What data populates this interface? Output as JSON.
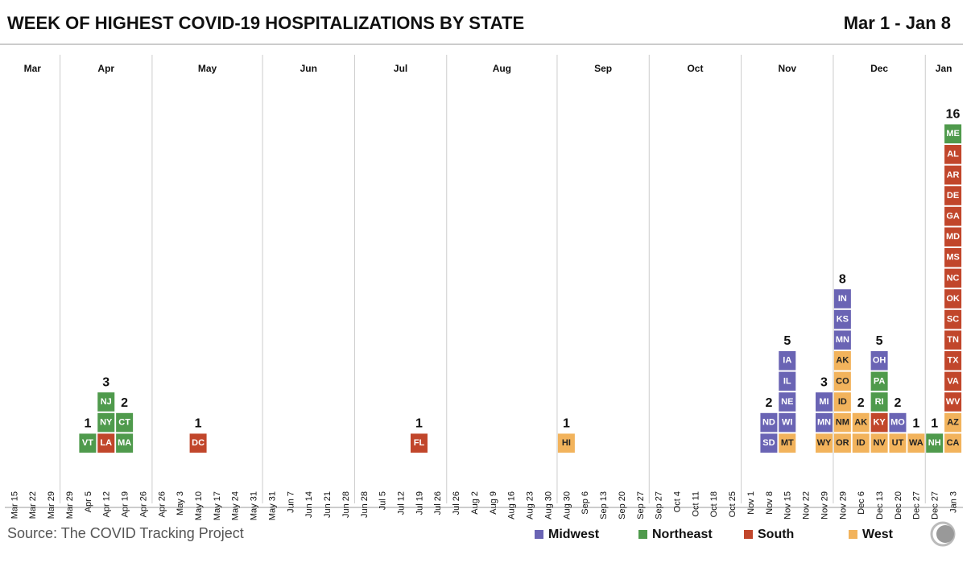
{
  "chart_data": {
    "type": "tile-stack",
    "title": "WEEK OF HIGHEST COVID-19 HOSPITALIZATIONS BY STATE",
    "date_range": "Mar 1 - Jan 8",
    "source": "Source: The COVID Tracking Project",
    "months": [
      "Mar",
      "Apr",
      "May",
      "Jun",
      "Jul",
      "Aug",
      "Sep",
      "Oct",
      "Nov",
      "Dec",
      "Jan"
    ],
    "categories": [
      "Mar 15",
      "Mar 22",
      "Mar 29",
      "Mar 29",
      "Apr 5",
      "Apr 12",
      "Apr 19",
      "Apr 26",
      "Apr 26",
      "May 3",
      "May 10",
      "May 17",
      "May 24",
      "May 31",
      "May 31",
      "Jun 7",
      "Jun 14",
      "Jun 21",
      "Jun 28",
      "Jun 28",
      "Jul 5",
      "Jul 12",
      "Jul 19",
      "Jul 26",
      "Jul 26",
      "Aug 2",
      "Aug 9",
      "Aug 16",
      "Aug 23",
      "Aug 30",
      "Aug 30",
      "Sep 6",
      "Sep 13",
      "Sep 20",
      "Sep 27",
      "Sep 27",
      "Oct 4",
      "Oct 11",
      "Oct 18",
      "Oct 25",
      "Nov 1",
      "Nov 8",
      "Nov 15",
      "Nov 22",
      "Nov 29",
      "Nov 29",
      "Dec 6",
      "Dec 13",
      "Dec 20",
      "Dec 27",
      "Dec 27",
      "Jan 3"
    ],
    "values": [
      null,
      null,
      null,
      null,
      1,
      3,
      2,
      null,
      null,
      null,
      1,
      null,
      null,
      null,
      null,
      null,
      null,
      null,
      null,
      null,
      null,
      null,
      1,
      null,
      null,
      null,
      null,
      null,
      null,
      null,
      1,
      null,
      null,
      null,
      null,
      null,
      null,
      null,
      null,
      null,
      null,
      2,
      5,
      null,
      3,
      8,
      2,
      5,
      2,
      1,
      1,
      16
    ],
    "regions": [
      {
        "name": "Midwest",
        "color": "#6a64b4",
        "text_color": "#ffffff"
      },
      {
        "name": "Northeast",
        "color": "#4f9a4c",
        "text_color": "#ffffff"
      },
      {
        "name": "South",
        "color": "#c1462b",
        "text_color": "#ffffff"
      },
      {
        "name": "West",
        "color": "#f2b35c",
        "text_color": "#222222"
      }
    ],
    "tiles": [
      [],
      [],
      [],
      [],
      [
        [
          "VT",
          1
        ]
      ],
      [
        [
          "LA",
          2
        ],
        [
          "NY",
          1
        ],
        [
          "NJ",
          1
        ]
      ],
      [
        [
          "MA",
          1
        ],
        [
          "CT",
          1
        ]
      ],
      [],
      [],
      [],
      [
        [
          "DC",
          2
        ]
      ],
      [],
      [],
      [],
      [],
      [],
      [],
      [],
      [],
      [],
      [],
      [],
      [
        [
          "FL",
          2
        ]
      ],
      [],
      [],
      [],
      [],
      [],
      [],
      [],
      [
        [
          "HI",
          3
        ]
      ],
      [],
      [],
      [],
      [],
      [],
      [],
      [],
      [],
      [],
      [],
      [
        [
          "SD",
          0
        ],
        [
          "ND",
          0
        ]
      ],
      [
        [
          "MT",
          3
        ],
        [
          "WI",
          0
        ],
        [
          "NE",
          0
        ],
        [
          "IL",
          0
        ],
        [
          "IA",
          0
        ]
      ],
      [],
      [
        [
          "WY",
          3
        ],
        [
          "MN",
          0
        ],
        [
          "MI",
          0
        ]
      ],
      [
        [
          "OR",
          3
        ],
        [
          "NM",
          3
        ],
        [
          "ID",
          3
        ],
        [
          "CO",
          3
        ],
        [
          "AK",
          3
        ],
        [
          "MN",
          0
        ],
        [
          "KS",
          0
        ],
        [
          "IN",
          0
        ]
      ],
      [
        [
          "ID",
          3
        ],
        [
          "AK",
          3
        ]
      ],
      [
        [
          "NV",
          3
        ],
        [
          "KY",
          2
        ],
        [
          "RI",
          1
        ],
        [
          "PA",
          1
        ],
        [
          "OH",
          0
        ]
      ],
      [
        [
          "UT",
          3
        ],
        [
          "MO",
          0
        ]
      ],
      [
        [
          "WA",
          3
        ]
      ],
      [
        [
          "NH",
          1
        ]
      ],
      [
        [
          "CA",
          3
        ],
        [
          "AZ",
          3
        ],
        [
          "WV",
          2
        ],
        [
          "VA",
          2
        ],
        [
          "TX",
          2
        ],
        [
          "TN",
          2
        ],
        [
          "SC",
          2
        ],
        [
          "OK",
          2
        ],
        [
          "NC",
          2
        ],
        [
          "MS",
          2
        ],
        [
          "MD",
          2
        ],
        [
          "GA",
          2
        ],
        [
          "DE",
          2
        ],
        [
          "AR",
          2
        ],
        [
          "AL",
          2
        ],
        [
          "ME",
          1
        ]
      ]
    ]
  }
}
